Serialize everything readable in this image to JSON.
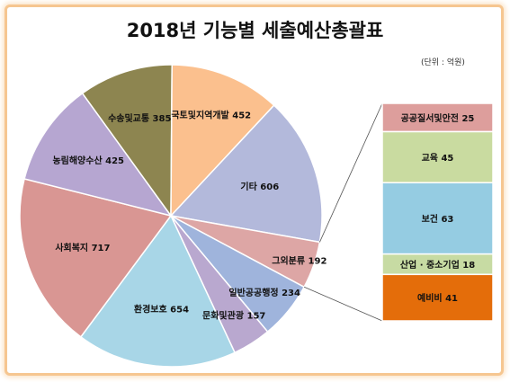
{
  "title": "2018년 기능별 세출예산총괄표",
  "unit_note": "(단위 : 억원)",
  "chart_data": {
    "type": "pie",
    "title": "2018년 기능별 세출예산총괄표",
    "unit": "(단위 : 억원)",
    "slices": [
      {
        "label": "기타",
        "value": 606,
        "color": "#b3b9db"
      },
      {
        "label": "그외분류",
        "value": 192,
        "color": "#dda6a5"
      },
      {
        "label": "일반공공행정",
        "value": 234,
        "color": "#9fb4dc"
      },
      {
        "label": "문화및관광",
        "value": 157,
        "color": "#b9a8cf"
      },
      {
        "label": "환경보호",
        "value": 654,
        "color": "#a8d6e7"
      },
      {
        "label": "사회복지",
        "value": 717,
        "color": "#d99693"
      },
      {
        "label": "농림해양수산",
        "value": 425,
        "color": "#b6a6d1"
      },
      {
        "label": "수송및교통",
        "value": 385,
        "color": "#8d8550"
      },
      {
        "label": "국토및지역개발",
        "value": 452,
        "color": "#fbc08e"
      }
    ],
    "breakdown_of": "그외분류",
    "breakdown": [
      {
        "label": "공공질서및안전",
        "value": 25,
        "color": "#dd9e9c"
      },
      {
        "label": "교육",
        "value": 45,
        "color": "#c9dba0"
      },
      {
        "label": "보건",
        "value": 63,
        "color": "#95cce2"
      },
      {
        "label": "산업 · 중소기업",
        "value": 18,
        "color": "#c7dba3"
      },
      {
        "label": "예비비",
        "value": 41,
        "color": "#e46d0a"
      }
    ]
  }
}
